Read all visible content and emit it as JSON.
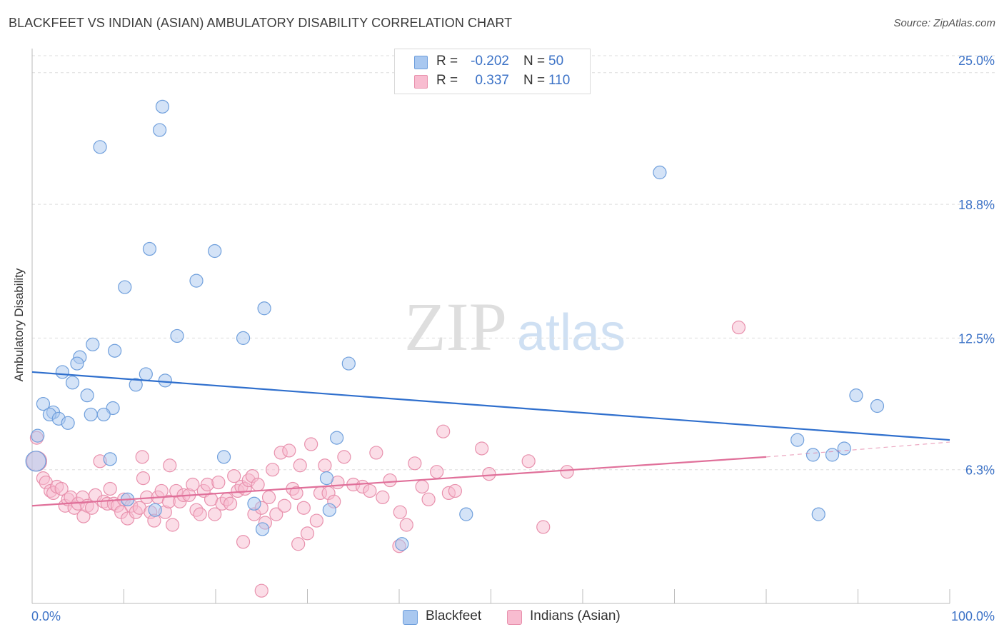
{
  "title": "BLACKFEET VS INDIAN (ASIAN) AMBULATORY DISABILITY CORRELATION CHART",
  "source": "Source: ZipAtlas.com",
  "watermark": {
    "zip": "ZIP",
    "atlas": "atlas"
  },
  "legend_top": [
    {
      "r_label": "R =",
      "r_value": "-0.202",
      "n_label": "N =",
      "n_value": "50",
      "color": "#a9c8f0",
      "edge": "#6f9fdc"
    },
    {
      "r_label": "R =",
      "r_value": "0.337",
      "n_label": "N =",
      "n_value": "110",
      "color": "#f8bcd0",
      "edge": "#e891ad"
    }
  ],
  "legend_bottom": [
    {
      "label": "Blackfeet",
      "color": "#a9c8f0",
      "edge": "#6f9fdc"
    },
    {
      "label": "Indians (Asian)",
      "color": "#f8bcd0",
      "edge": "#e891ad"
    }
  ],
  "chart_data": {
    "type": "scatter",
    "title": "BLACKFEET VS INDIAN (ASIAN) AMBULATORY DISABILITY CORRELATION CHART",
    "xlabel": "",
    "ylabel": "Ambulatory Disability",
    "xlim": [
      0,
      100
    ],
    "ylim": [
      0,
      25.8
    ],
    "x_tick_labels": [
      "0.0%",
      "100.0%"
    ],
    "y_ticks": [
      6.3,
      12.5,
      18.8,
      25.0
    ],
    "y_tick_labels": [
      "6.3%",
      "12.5%",
      "18.8%",
      "25.0%"
    ],
    "grid": true,
    "series": [
      {
        "name": "Blackfeet",
        "color": "#a9c8f0",
        "edge": "#6f9fdc",
        "trend_color": "#2f6fcd",
        "trend": {
          "x0": 0,
          "y0": 10.9,
          "x1": 100,
          "y1": 7.7
        },
        "points": [
          [
            14.2,
            23.4
          ],
          [
            13.9,
            22.3
          ],
          [
            7.4,
            21.5
          ],
          [
            68.4,
            20.3
          ],
          [
            12.8,
            16.7
          ],
          [
            19.9,
            16.6
          ],
          [
            17.9,
            15.2
          ],
          [
            10.1,
            14.9
          ],
          [
            25.3,
            13.9
          ],
          [
            15.8,
            12.6
          ],
          [
            23.0,
            12.5
          ],
          [
            6.6,
            12.2
          ],
          [
            9.0,
            11.9
          ],
          [
            5.2,
            11.6
          ],
          [
            4.9,
            11.3
          ],
          [
            34.5,
            11.3
          ],
          [
            3.3,
            10.9
          ],
          [
            12.4,
            10.8
          ],
          [
            14.5,
            10.5
          ],
          [
            4.4,
            10.4
          ],
          [
            11.3,
            10.3
          ],
          [
            6.0,
            9.8
          ],
          [
            1.2,
            9.4
          ],
          [
            8.8,
            9.2
          ],
          [
            2.3,
            9.0
          ],
          [
            1.9,
            8.9
          ],
          [
            6.4,
            8.9
          ],
          [
            7.8,
            8.9
          ],
          [
            2.9,
            8.7
          ],
          [
            3.9,
            8.5
          ],
          [
            0.6,
            7.9
          ],
          [
            33.2,
            7.8
          ],
          [
            83.4,
            7.7
          ],
          [
            89.8,
            9.8
          ],
          [
            92.1,
            9.3
          ],
          [
            88.5,
            7.3
          ],
          [
            85.1,
            7.0
          ],
          [
            87.2,
            7.0
          ],
          [
            20.9,
            6.9
          ],
          [
            8.5,
            6.8
          ],
          [
            0.4,
            6.7
          ],
          [
            32.1,
            5.9
          ],
          [
            10.4,
            4.9
          ],
          [
            13.4,
            4.4
          ],
          [
            24.2,
            4.7
          ],
          [
            32.4,
            4.4
          ],
          [
            47.3,
            4.2
          ],
          [
            85.7,
            4.2
          ],
          [
            25.1,
            3.5
          ],
          [
            40.3,
            2.8
          ]
        ]
      },
      {
        "name": "Indians (Asian)",
        "color": "#f8bcd0",
        "edge": "#e891ad",
        "trend_color": "#e0709a",
        "trend": {
          "x0": 0,
          "y0": 4.6,
          "x1": 80,
          "y1": 6.9
        },
        "trend_dashed": {
          "x0": 80,
          "y0": 6.9,
          "x1": 100,
          "y1": 7.6
        },
        "points": [
          [
            0.5,
            7.8
          ],
          [
            0.5,
            6.7
          ],
          [
            1.2,
            5.9
          ],
          [
            1.5,
            5.7
          ],
          [
            2.0,
            5.3
          ],
          [
            2.3,
            5.2
          ],
          [
            2.7,
            5.5
          ],
          [
            3.2,
            5.4
          ],
          [
            3.6,
            4.6
          ],
          [
            3.9,
            4.9
          ],
          [
            4.2,
            5.0
          ],
          [
            4.6,
            4.5
          ],
          [
            5.0,
            4.7
          ],
          [
            5.5,
            5.0
          ],
          [
            5.6,
            4.1
          ],
          [
            6.0,
            4.6
          ],
          [
            6.5,
            4.5
          ],
          [
            6.9,
            5.1
          ],
          [
            7.4,
            6.7
          ],
          [
            7.8,
            4.8
          ],
          [
            8.2,
            4.7
          ],
          [
            8.5,
            5.4
          ],
          [
            8.9,
            4.7
          ],
          [
            9.3,
            4.6
          ],
          [
            9.7,
            4.3
          ],
          [
            10.0,
            4.9
          ],
          [
            10.4,
            4.0
          ],
          [
            10.8,
            4.6
          ],
          [
            11.3,
            4.3
          ],
          [
            11.7,
            4.5
          ],
          [
            12.1,
            5.9
          ],
          [
            12.5,
            5.0
          ],
          [
            12.9,
            4.3
          ],
          [
            13.3,
            3.9
          ],
          [
            13.7,
            5.0
          ],
          [
            14.1,
            5.3
          ],
          [
            14.5,
            4.3
          ],
          [
            14.9,
            4.8
          ],
          [
            15.3,
            3.7
          ],
          [
            15.7,
            5.3
          ],
          [
            16.1,
            4.8
          ],
          [
            16.5,
            5.1
          ],
          [
            17.1,
            5.1
          ],
          [
            17.5,
            5.6
          ],
          [
            17.9,
            4.4
          ],
          [
            18.3,
            4.2
          ],
          [
            18.7,
            5.3
          ],
          [
            19.1,
            5.6
          ],
          [
            19.5,
            4.9
          ],
          [
            19.9,
            4.2
          ],
          [
            20.3,
            5.7
          ],
          [
            20.7,
            4.7
          ],
          [
            21.2,
            4.9
          ],
          [
            21.6,
            4.7
          ],
          [
            22.0,
            6.0
          ],
          [
            22.4,
            5.3
          ],
          [
            22.8,
            5.5
          ],
          [
            23.2,
            5.4
          ],
          [
            23.6,
            5.8
          ],
          [
            24.0,
            6.0
          ],
          [
            24.2,
            4.2
          ],
          [
            24.6,
            5.6
          ],
          [
            25.0,
            4.5
          ],
          [
            25.4,
            3.8
          ],
          [
            25.8,
            5.0
          ],
          [
            26.2,
            6.3
          ],
          [
            26.6,
            4.2
          ],
          [
            27.1,
            7.1
          ],
          [
            27.5,
            4.6
          ],
          [
            28.0,
            7.2
          ],
          [
            28.4,
            5.4
          ],
          [
            28.8,
            5.2
          ],
          [
            29.2,
            6.5
          ],
          [
            29.6,
            4.5
          ],
          [
            30.0,
            3.3
          ],
          [
            30.4,
            7.5
          ],
          [
            31.0,
            3.9
          ],
          [
            31.4,
            5.2
          ],
          [
            31.9,
            6.5
          ],
          [
            32.3,
            5.2
          ],
          [
            32.9,
            4.8
          ],
          [
            33.3,
            5.7
          ],
          [
            34.0,
            6.9
          ],
          [
            35.0,
            5.6
          ],
          [
            36.0,
            5.5
          ],
          [
            36.8,
            5.3
          ],
          [
            37.5,
            7.1
          ],
          [
            38.2,
            5.0
          ],
          [
            39.0,
            5.8
          ],
          [
            40.1,
            4.3
          ],
          [
            40.8,
            3.7
          ],
          [
            41.7,
            6.6
          ],
          [
            42.5,
            5.5
          ],
          [
            43.2,
            4.9
          ],
          [
            44.1,
            6.2
          ],
          [
            44.8,
            8.1
          ],
          [
            45.4,
            5.2
          ],
          [
            46.1,
            5.3
          ],
          [
            49.0,
            7.3
          ],
          [
            49.8,
            6.1
          ],
          [
            54.1,
            6.7
          ],
          [
            55.7,
            3.6
          ],
          [
            58.3,
            6.2
          ],
          [
            77.0,
            13.0
          ],
          [
            23.0,
            2.9
          ],
          [
            25.0,
            0.6
          ],
          [
            29.0,
            2.8
          ],
          [
            40.0,
            2.7
          ],
          [
            15.0,
            6.5
          ],
          [
            12.0,
            6.9
          ]
        ]
      }
    ]
  }
}
